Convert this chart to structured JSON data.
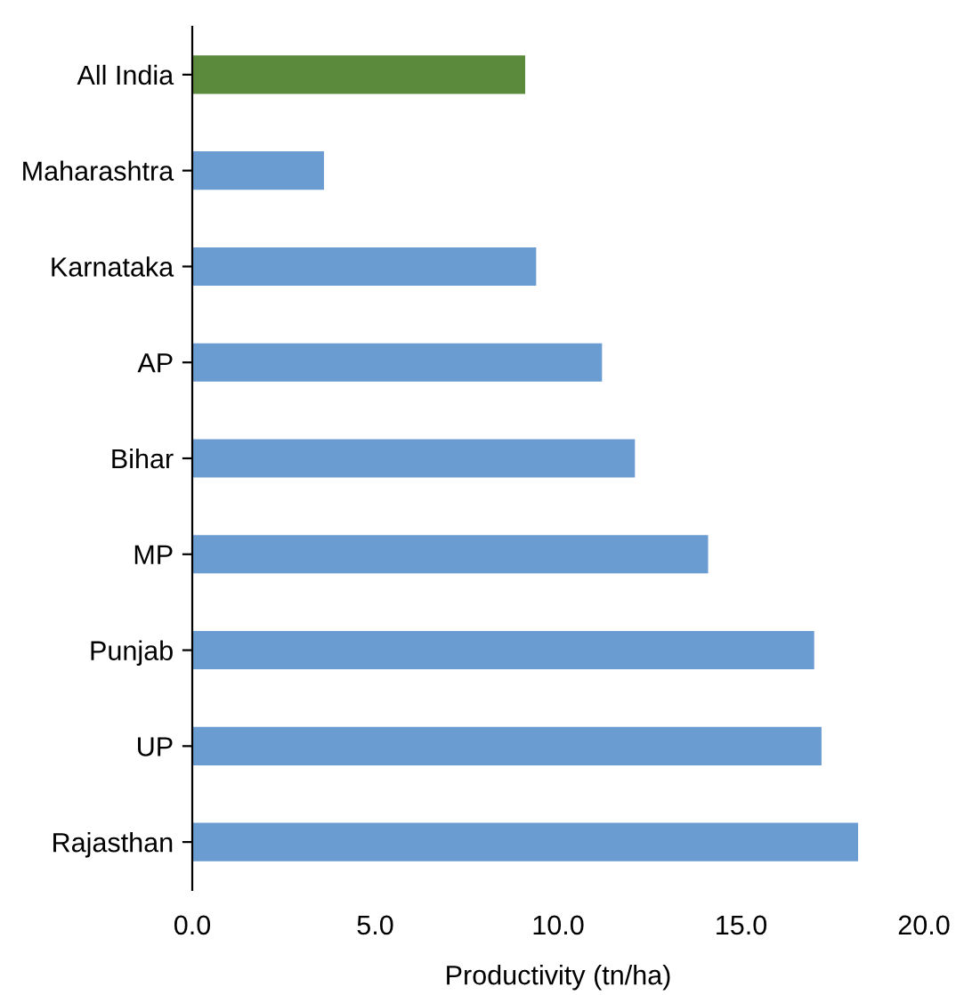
{
  "chart_data": {
    "type": "bar",
    "orientation": "horizontal",
    "xlabel": "Productivity (tn/ha)",
    "categories": [
      "All India",
      "Maharashtra",
      "Karnataka",
      "AP",
      "Bihar",
      "MP",
      "Punjab",
      "UP",
      "Rajasthan"
    ],
    "values": [
      9.1,
      3.6,
      9.4,
      11.2,
      12.1,
      14.1,
      17.0,
      17.2,
      18.2
    ],
    "colors": [
      "#5b8a3c",
      "#6a9bd1",
      "#6a9bd1",
      "#6a9bd1",
      "#6a9bd1",
      "#6a9bd1",
      "#6a9bd1",
      "#6a9bd1",
      "#6a9bd1"
    ],
    "xlim": [
      0,
      20
    ],
    "xticks": [
      {
        "value": 0,
        "label": "0.0"
      },
      {
        "value": 5,
        "label": "5.0"
      },
      {
        "value": 10,
        "label": "10.0"
      },
      {
        "value": 15,
        "label": "15.0"
      },
      {
        "value": 20,
        "label": "20.0"
      }
    ],
    "grid": false,
    "legend": false
  }
}
